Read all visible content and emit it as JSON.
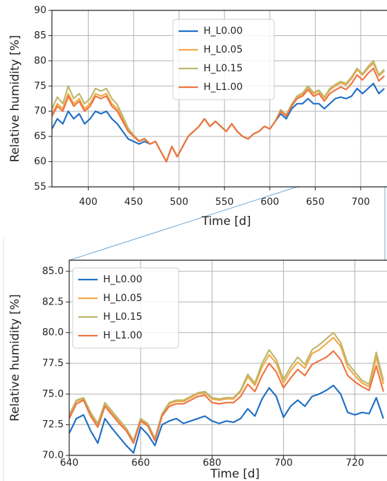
{
  "chart_data": [
    {
      "type": "line",
      "x_label": "Time [d]",
      "y_label": "Relative humidity [%]",
      "x": [
        360,
        366,
        372,
        378,
        384,
        390,
        396,
        402,
        408,
        414,
        420,
        426,
        432,
        438,
        444,
        450,
        456,
        462,
        468,
        474,
        480,
        486,
        492,
        498,
        504,
        510,
        516,
        522,
        528,
        534,
        540,
        546,
        552,
        558,
        564,
        570,
        576,
        582,
        588,
        594,
        600,
        606,
        612,
        618,
        624,
        630,
        636,
        642,
        648,
        654,
        660,
        666,
        672,
        678,
        684,
        690,
        696,
        702,
        708,
        714,
        720,
        726
      ],
      "xlim": [
        360,
        729
      ],
      "ylim": [
        55,
        90
      ],
      "xticks": [
        400,
        450,
        500,
        550,
        600,
        650,
        700
      ],
      "yticks": [
        55,
        60,
        65,
        70,
        75,
        80,
        85,
        90
      ],
      "grid": true,
      "legend": "upper center",
      "series": [
        {
          "name": "H_L0.00",
          "color": "#1f6fc4",
          "values": [
            66.5,
            68.5,
            67.5,
            70,
            68.5,
            69.5,
            67.5,
            68.5,
            70,
            69.5,
            70,
            68.5,
            67.5,
            66,
            64.5,
            64,
            63.5,
            64,
            63.5,
            64,
            62,
            60,
            63,
            61,
            63,
            65,
            66,
            67,
            68.5,
            67,
            68,
            67,
            66,
            67.5,
            66,
            65,
            64.5,
            65.5,
            66,
            67,
            66.5,
            68,
            69.5,
            68.5,
            70.5,
            71.5,
            71.5,
            72.5,
            71.5,
            71.5,
            70.5,
            71.5,
            72.5,
            72.8,
            72.5,
            73,
            74.5,
            73.5,
            74.5,
            75.5,
            73.5,
            74.5
          ]
        },
        {
          "name": "H_L0.05",
          "color": "#f5a847",
          "values": [
            69.5,
            71.5,
            70.5,
            73.5,
            71.5,
            72.5,
            70.5,
            71.5,
            73.5,
            73,
            73.5,
            71.5,
            70.5,
            68.5,
            66.3,
            65.2,
            64,
            64.5,
            63.5,
            64,
            62,
            60,
            63,
            61,
            63,
            65,
            66,
            67,
            68.5,
            67,
            68,
            67,
            66,
            67.5,
            66,
            65,
            64.5,
            65.5,
            66,
            67,
            66.5,
            68,
            70.2,
            69.2,
            71.3,
            72.8,
            73.4,
            74.8,
            73.5,
            74,
            72.6,
            74.2,
            75,
            75.6,
            75.2,
            76.5,
            78.2,
            77.2,
            78.5,
            79.5,
            77,
            78
          ]
        },
        {
          "name": "H_L0.15",
          "color": "#bdb76b",
          "values": [
            70.5,
            72.8,
            71.5,
            75,
            72.5,
            73.5,
            71.5,
            72.5,
            74.5,
            74,
            74.5,
            72.5,
            71.3,
            69,
            66.6,
            65.3,
            64.1,
            64.6,
            63.5,
            64,
            62,
            60,
            63,
            61,
            63,
            65,
            66,
            67,
            68.5,
            67,
            68,
            67,
            66,
            67.5,
            66,
            65,
            64.5,
            65.5,
            66,
            67,
            66.5,
            68,
            70.3,
            69.3,
            71.4,
            73,
            73.6,
            75,
            73.7,
            74.2,
            72.8,
            74.5,
            75.3,
            75.9,
            75.5,
            76.8,
            78.5,
            77.4,
            78.8,
            80,
            77.2,
            78.3
          ]
        },
        {
          "name": "H_L1.00",
          "color": "#ee7440",
          "values": [
            69,
            71,
            70,
            73,
            71,
            72,
            70,
            71,
            73,
            72.5,
            73,
            71,
            70,
            68,
            66,
            65,
            64,
            64.5,
            63.5,
            64,
            62,
            60,
            63,
            61,
            63,
            65,
            66,
            67,
            68.5,
            67,
            68,
            67,
            66,
            67.5,
            66,
            65,
            64.5,
            65.5,
            66,
            67,
            66.5,
            68,
            70,
            69,
            71,
            72.5,
            73,
            74.3,
            73,
            73.5,
            72,
            73.5,
            74.2,
            74.8,
            74.3,
            75.5,
            77.2,
            76.2,
            77.5,
            78.5,
            76,
            77
          ]
        }
      ]
    },
    {
      "type": "line",
      "x_label": "Time [d]",
      "y_label": "Relative humidity [%]",
      "x": [
        640,
        642,
        644,
        646,
        648,
        650,
        652,
        654,
        656,
        658,
        660,
        662,
        664,
        666,
        668,
        670,
        672,
        674,
        676,
        678,
        680,
        682,
        684,
        686,
        688,
        690,
        692,
        694,
        696,
        698,
        700,
        702,
        704,
        706,
        708,
        710,
        712,
        714,
        716,
        718,
        720,
        722,
        724,
        726,
        728
      ],
      "xlim": [
        640,
        729
      ],
      "ylim": [
        70,
        85.9
      ],
      "xticks": [
        640,
        660,
        680,
        700,
        720
      ],
      "yticks": [
        {
          "value": 70,
          "label": "70.0"
        },
        72.5,
        {
          "value": 75,
          "label": "75.0"
        },
        77.5,
        {
          "value": 80,
          "label": "80.0"
        },
        82.5,
        {
          "value": 85,
          "label": "85.0"
        }
      ],
      "grid": true,
      "legend": "upper left",
      "series": [
        {
          "name": "H_L0.00",
          "color": "#1f6fc4",
          "values": [
            71.8,
            73,
            73.3,
            72,
            71,
            73,
            72.2,
            71.5,
            70.8,
            70.2,
            72.3,
            71.7,
            70.8,
            72.5,
            72.8,
            73,
            72.6,
            72.8,
            73,
            73.2,
            72.8,
            72.6,
            72.8,
            72.7,
            73,
            73.8,
            73.2,
            74.6,
            75.5,
            74.8,
            73.1,
            74,
            74.5,
            74,
            74.8,
            75,
            75.3,
            75.7,
            75,
            73.5,
            73.3,
            73.5,
            73.4,
            74.7,
            73
          ]
        },
        {
          "name": "H_L0.05",
          "color": "#f5a847",
          "values": [
            73.2,
            74.4,
            74.6,
            73.4,
            72.5,
            74.2,
            73.5,
            72.8,
            72.1,
            71.1,
            72.9,
            72.5,
            71.3,
            73.3,
            74.2,
            74.4,
            74.4,
            74.7,
            75,
            75.1,
            74.6,
            74.5,
            74.6,
            74.6,
            75.2,
            76.4,
            75.7,
            77.2,
            78.2,
            77.5,
            75.9,
            76.9,
            77.6,
            77.1,
            78.3,
            78.6,
            79.1,
            79.6,
            78.9,
            77.2,
            76.5,
            75.9,
            75.6,
            78,
            75.8
          ]
        },
        {
          "name": "H_L0.15",
          "color": "#bdb76b",
          "values": [
            73.3,
            74.5,
            74.7,
            73.5,
            72.6,
            74.3,
            73.6,
            72.9,
            72.2,
            71.2,
            73,
            72.6,
            71.4,
            73.4,
            74.3,
            74.5,
            74.5,
            74.8,
            75.1,
            75.2,
            74.7,
            74.6,
            74.7,
            74.7,
            75.3,
            76.6,
            75.9,
            77.5,
            78.6,
            77.8,
            76.2,
            77.2,
            78,
            77.4,
            78.6,
            79,
            79.5,
            80,
            79.2,
            77.5,
            76.8,
            76.1,
            75.8,
            78.4,
            76.1
          ]
        },
        {
          "name": "H_L1.00",
          "color": "#ee7440",
          "values": [
            73,
            74.2,
            74.5,
            73.2,
            72.3,
            74,
            73.3,
            72.6,
            72,
            71,
            72.8,
            72.4,
            71.2,
            73.2,
            74,
            74.2,
            74.2,
            74.5,
            74.8,
            74.9,
            74.3,
            74.2,
            74.3,
            74.3,
            74.8,
            75.8,
            75.2,
            76.5,
            77.5,
            76.8,
            75.5,
            76.3,
            77,
            76.5,
            77.4,
            77.7,
            78,
            78.5,
            77.8,
            76.5,
            76,
            75.6,
            75.3,
            77.3,
            75.2
          ]
        }
      ]
    }
  ]
}
